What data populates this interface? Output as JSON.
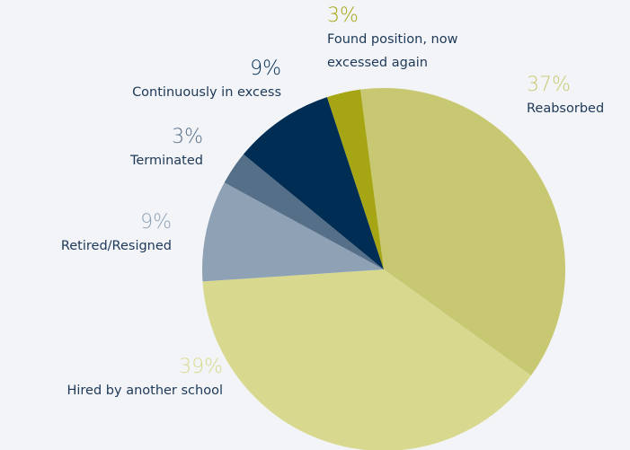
{
  "chart_data": {
    "type": "pie",
    "categories": [
      "Reabsorbed",
      "Hired by another school",
      "Retired/Resigned",
      "Terminated",
      "Continuously in excess",
      "Found position, now excessed again"
    ],
    "values": [
      37,
      39,
      9,
      3,
      9,
      3
    ],
    "value_labels": [
      "37%",
      "39%",
      "9%",
      "3%",
      "9%",
      "3%"
    ],
    "colors": [
      "#c9c872",
      "#d8d98f",
      "#8ea1b5",
      "#566f88",
      "#002d54",
      "#a6a614"
    ]
  }
}
